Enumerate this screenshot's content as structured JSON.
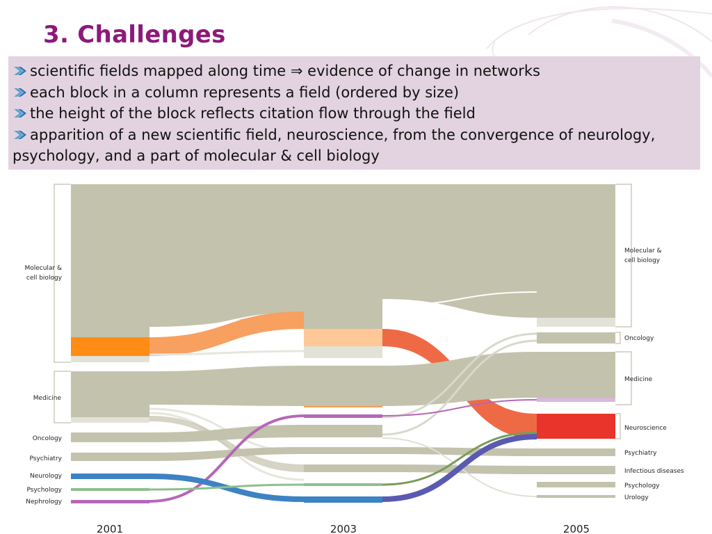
{
  "slide": {
    "title": "3. Challenges",
    "bullets": [
      "scientific fields mapped along time ⇒ evidence of change in networks",
      "each block in a column represents a field (ordered by size)",
      "the height of the block reflects citation flow through the field",
      "apparition of a new scientific field, neuroscience, from the convergence of neurology, psychology, and a part of molecular & cell biology"
    ]
  },
  "diagram": {
    "years": [
      "2001",
      "2003",
      "2005"
    ],
    "labels_2001": {
      "molecular": [
        "Molecular &",
        "cell biology"
      ],
      "medicine": "Medicine",
      "oncology": "Oncology",
      "psychiatry": "Psychiatry",
      "neurology": "Neurology",
      "psychology": "Psychology",
      "nephrology": "Nephrology"
    },
    "labels_2005": {
      "molecular": [
        "Molecular &",
        "cell biology"
      ],
      "oncology": "Oncology",
      "medicine": "Medicine",
      "neuroscience": "Neuroscience",
      "psychiatry": "Psychiatry",
      "infectious": "Infectious diseases",
      "psychology": "Psychology",
      "urology": "Urology"
    },
    "colors": {
      "block": "#c3c2ad",
      "molecular_to_neuro": "#f7a060",
      "neuroscience": "#e8342a",
      "neurology": "#3c82c4",
      "nephrology": "#b567b8",
      "psychology": "#8cc08c"
    }
  }
}
